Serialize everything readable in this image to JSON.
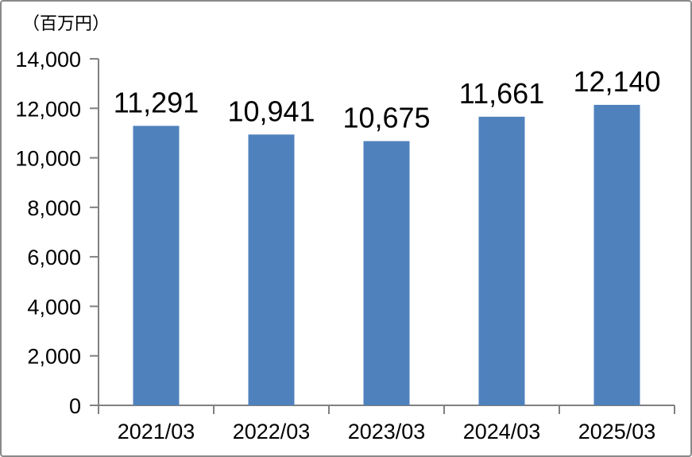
{
  "window": {
    "background_color": "#FFFFFF",
    "frame_border_color": "#898989"
  },
  "chart_data": {
    "type": "bar",
    "title": "",
    "unit_label": "（百万円）",
    "xlabel": "",
    "ylabel": "",
    "categories": [
      "2021/03",
      "2022/03",
      "2023/03",
      "2024/03",
      "2025/03"
    ],
    "values": [
      11291,
      10941,
      10675,
      11661,
      12140
    ],
    "value_labels": [
      "11,291",
      "10,941",
      "10,675",
      "11,661",
      "12,140"
    ],
    "ylim": [
      0,
      14000
    ],
    "y_tick_step": 2000,
    "y_tick_labels": [
      "0",
      "2,000",
      "4,000",
      "6,000",
      "8,000",
      "10,000",
      "12,000",
      "14,000"
    ],
    "bar_color": "#4F81BD",
    "axis_color": "#808080",
    "text_color": "#000000",
    "grid": false,
    "legend_position": "none"
  }
}
